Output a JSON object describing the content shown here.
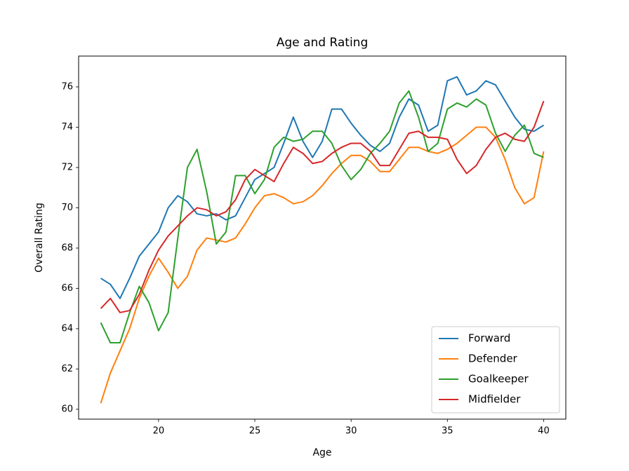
{
  "chart_data": {
    "type": "line",
    "title": "Age and Rating",
    "xlabel": "Age",
    "ylabel": "Overall Rating",
    "x": [
      17,
      17.5,
      18,
      18.5,
      19,
      19.5,
      20,
      20.5,
      21,
      21.5,
      22,
      22.5,
      23,
      23.5,
      24,
      24.5,
      25,
      25.5,
      26,
      26.5,
      27,
      27.5,
      28,
      28.5,
      29,
      29.5,
      30,
      30.5,
      31,
      31.5,
      32,
      32.5,
      33,
      33.5,
      34,
      34.5,
      35,
      35.5,
      36,
      36.5,
      37,
      37.5,
      38,
      38.5,
      39,
      39.5,
      40
    ],
    "series": [
      {
        "name": "Forward",
        "color": "#1f77b4",
        "values": [
          66.5,
          66.2,
          65.5,
          66.5,
          67.6,
          68.2,
          68.8,
          70.0,
          70.6,
          70.3,
          69.7,
          69.6,
          69.7,
          69.4,
          69.6,
          70.5,
          71.4,
          71.7,
          72.0,
          73.2,
          74.5,
          73.3,
          72.5,
          73.3,
          74.9,
          74.9,
          74.2,
          73.6,
          73.1,
          72.8,
          73.2,
          74.5,
          75.4,
          75.1,
          73.8,
          74.1,
          76.3,
          76.5,
          75.6,
          75.8,
          76.3,
          76.1,
          75.3,
          74.5,
          73.9,
          73.8,
          74.1
        ]
      },
      {
        "name": "Defender",
        "color": "#ff7f0e",
        "values": [
          60.3,
          61.8,
          62.9,
          64.0,
          65.5,
          66.6,
          67.5,
          66.8,
          66.0,
          66.6,
          67.9,
          68.5,
          68.4,
          68.3,
          68.5,
          69.2,
          70.0,
          70.6,
          70.7,
          70.5,
          70.2,
          70.3,
          70.6,
          71.1,
          71.7,
          72.2,
          72.6,
          72.6,
          72.3,
          71.8,
          71.8,
          72.4,
          73.0,
          73.0,
          72.8,
          72.7,
          72.9,
          73.2,
          73.6,
          74.0,
          74.0,
          73.5,
          72.4,
          71.0,
          70.2,
          70.5,
          72.8
        ]
      },
      {
        "name": "Goalkeeper",
        "color": "#2ca02c",
        "values": [
          64.3,
          63.3,
          63.3,
          64.8,
          66.1,
          65.3,
          63.9,
          64.8,
          68.5,
          72.0,
          72.9,
          70.8,
          68.2,
          68.8,
          71.6,
          71.6,
          70.7,
          71.4,
          73.0,
          73.5,
          73.3,
          73.4,
          73.8,
          73.8,
          73.2,
          72.1,
          71.4,
          71.9,
          72.7,
          73.2,
          73.8,
          75.2,
          75.8,
          74.5,
          72.8,
          73.2,
          74.9,
          75.2,
          75.0,
          75.4,
          75.1,
          73.7,
          72.8,
          73.6,
          74.1,
          72.7,
          72.5
        ]
      },
      {
        "name": "Midfielder",
        "color": "#d62728",
        "values": [
          65.0,
          65.5,
          64.8,
          64.9,
          65.7,
          66.9,
          67.9,
          68.6,
          69.1,
          69.6,
          70.0,
          69.9,
          69.6,
          69.8,
          70.4,
          71.4,
          71.9,
          71.6,
          71.3,
          72.2,
          73.0,
          72.7,
          72.2,
          72.3,
          72.7,
          73.0,
          73.2,
          73.2,
          72.8,
          72.1,
          72.1,
          72.9,
          73.7,
          73.8,
          73.5,
          73.5,
          73.4,
          72.4,
          71.7,
          72.1,
          72.9,
          73.5,
          73.7,
          73.4,
          73.3,
          74.0,
          75.3
        ]
      }
    ],
    "xlim": [
      15.85,
      41.15
    ],
    "xticks": [
      20,
      25,
      30,
      35,
      40
    ],
    "ylim": [
      59.51,
      77.53
    ],
    "yticks": [
      60,
      62,
      64,
      66,
      68,
      70,
      72,
      74,
      76
    ],
    "grid": false,
    "legend": "lower right"
  }
}
